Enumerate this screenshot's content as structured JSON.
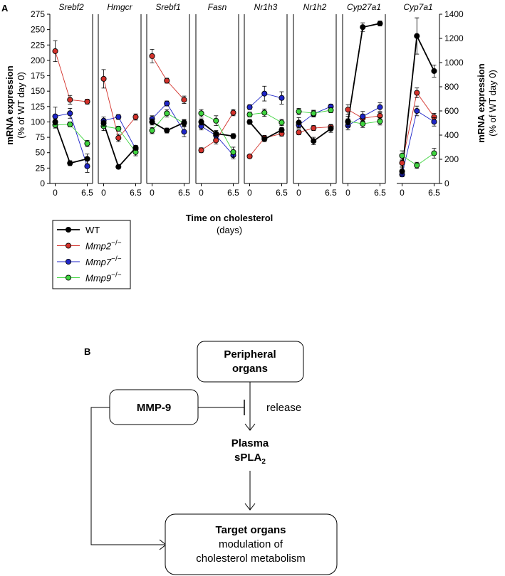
{
  "panel_a": {
    "label": "A",
    "left_axis_title_1": "mRNA expression",
    "left_axis_title_2": "(% of WT day 0)",
    "right_axis_title_1": "mRNA expression",
    "right_axis_title_2": "(% of WT day 0)",
    "x_title": "Time on cholesterol",
    "x_unit": "(days)",
    "legend": [
      {
        "name": "WT",
        "color": "#000000"
      },
      {
        "name": "Mmp2",
        "sup": "−/−",
        "color": "#d3312a"
      },
      {
        "name": "Mmp7",
        "sup": "−/−",
        "color": "#1f26c8"
      },
      {
        "name": "Mmp9",
        "sup": "−/−",
        "color": "#3fd43f"
      }
    ]
  },
  "chart_data": {
    "type": "line",
    "x": [
      0,
      3,
      6.5
    ],
    "x_tick_labels": [
      "0",
      "6.5"
    ],
    "left_axis": {
      "ylim": [
        0,
        275
      ],
      "ticks": [
        0,
        25,
        50,
        75,
        100,
        125,
        150,
        175,
        200,
        225,
        250,
        275
      ]
    },
    "right_axis": {
      "ylim": [
        0,
        1400
      ],
      "ticks": [
        0,
        200,
        400,
        600,
        800,
        1000,
        1200,
        1400
      ]
    },
    "genes": [
      {
        "name": "Srebf2",
        "axis": "left",
        "series": {
          "WT": [
            [
              100,
              5
            ],
            [
              33,
              4
            ],
            [
              40,
              8
            ]
          ],
          "Mmp2": [
            [
              215,
              17
            ],
            [
              136,
              7
            ],
            [
              133,
              4
            ]
          ],
          "Mmp7": [
            [
              109,
              15
            ],
            [
              114,
              8
            ],
            [
              28,
              10
            ]
          ],
          "Mmp9": [
            [
              95,
              5
            ],
            [
              96,
              4
            ],
            [
              65,
              5
            ]
          ]
        }
      },
      {
        "name": "Hmgcr",
        "axis": "left",
        "series": {
          "WT": [
            [
              98,
              5
            ],
            [
              27,
              3
            ],
            [
              58,
              4
            ]
          ],
          "Mmp2": [
            [
              170,
              15
            ],
            [
              74,
              6
            ],
            [
              108,
              5
            ]
          ],
          "Mmp7": [
            [
              102,
              6
            ],
            [
              108,
              4
            ],
            [
              56,
              5
            ]
          ],
          "Mmp9": [
            [
              93,
              7
            ],
            [
              89,
              4
            ],
            [
              51,
              6
            ]
          ]
        }
      },
      {
        "name": "Srebf1",
        "axis": "left",
        "series": {
          "WT": [
            [
              100,
              5
            ],
            [
              86,
              4
            ],
            [
              99,
              5
            ]
          ],
          "Mmp2": [
            [
              207,
              11
            ],
            [
              167,
              4
            ],
            [
              136,
              6
            ]
          ],
          "Mmp7": [
            [
              105,
              5
            ],
            [
              130,
              4
            ],
            [
              84,
              8
            ]
          ],
          "Mmp9": [
            [
              86,
              5
            ],
            [
              114,
              6
            ],
            [
              98,
              5
            ]
          ]
        }
      },
      {
        "name": "Fasn",
        "axis": "left",
        "series": {
          "WT": [
            [
              100,
              5
            ],
            [
              81,
              5
            ],
            [
              77,
              4
            ]
          ],
          "Mmp2": [
            [
              54,
              4
            ],
            [
              70,
              6
            ],
            [
              115,
              5
            ]
          ],
          "Mmp7": [
            [
              93,
              6
            ],
            [
              78,
              4
            ],
            [
              46,
              6
            ]
          ],
          "Mmp9": [
            [
              114,
              6
            ],
            [
              102,
              8
            ],
            [
              51,
              8
            ]
          ]
        }
      },
      {
        "name": "Nr1h3",
        "axis": "left",
        "series": {
          "WT": [
            [
              100,
              4
            ],
            [
              72,
              4
            ],
            [
              87,
              4
            ]
          ],
          "Mmp2": [
            [
              44,
              3
            ],
            [
              74,
              4
            ],
            [
              81,
              4
            ]
          ],
          "Mmp7": [
            [
              124,
              4
            ],
            [
              146,
              12
            ],
            [
              139,
              10
            ]
          ],
          "Mmp9": [
            [
              112,
              4
            ],
            [
              115,
              6
            ],
            [
              99,
              5
            ]
          ]
        }
      },
      {
        "name": "Nr1h2",
        "axis": "left",
        "series": {
          "WT": [
            [
              99,
              8
            ],
            [
              69,
              6
            ],
            [
              89,
              6
            ]
          ],
          "Mmp2": [
            [
              83,
              4
            ],
            [
              90,
              4
            ],
            [
              92,
              4
            ]
          ],
          "Mmp7": [
            [
              95,
              5
            ],
            [
              113,
              5
            ],
            [
              125,
              4
            ]
          ],
          "Mmp9": [
            [
              117,
              5
            ],
            [
              114,
              5
            ],
            [
              119,
              4
            ]
          ]
        }
      },
      {
        "name": "Cyp27a1",
        "axis": "left",
        "series": {
          "WT": [
            [
              100,
              5
            ],
            [
              254,
              7
            ],
            [
              260,
              4
            ]
          ],
          "Mmp2": [
            [
              120,
              8
            ],
            [
              106,
              5
            ],
            [
              110,
              5
            ]
          ],
          "Mmp7": [
            [
              94,
              7
            ],
            [
              109,
              8
            ],
            [
              124,
              7
            ]
          ],
          "Mmp9": [
            [
              101,
              8
            ],
            [
              97,
              6
            ],
            [
              101,
              6
            ]
          ]
        }
      },
      {
        "name": "Cyp7a1",
        "axis": "right",
        "series": {
          "WT": [
            [
              100,
              30
            ],
            [
              1220,
              150
            ],
            [
              930,
              50
            ]
          ],
          "Mmp2": [
            [
              170,
              30
            ],
            [
              750,
              40
            ],
            [
              550,
              30
            ]
          ],
          "Mmp7": [
            [
              75,
              20
            ],
            [
              600,
              40
            ],
            [
              510,
              35
            ]
          ],
          "Mmp9": [
            [
              230,
              40
            ],
            [
              150,
              25
            ],
            [
              250,
              40
            ]
          ]
        }
      }
    ]
  },
  "panel_b": {
    "label": "B",
    "peripheral_line1": "Peripheral",
    "peripheral_line2": "organs",
    "mmp9": "MMP-9",
    "release": "release",
    "plasma_line1": "Plasma",
    "plasma_line2": "sPLA",
    "plasma_sub": "2",
    "target_line1": "Target organs",
    "target_line2": "modulation of",
    "target_line3": "cholesterol metabolism"
  }
}
